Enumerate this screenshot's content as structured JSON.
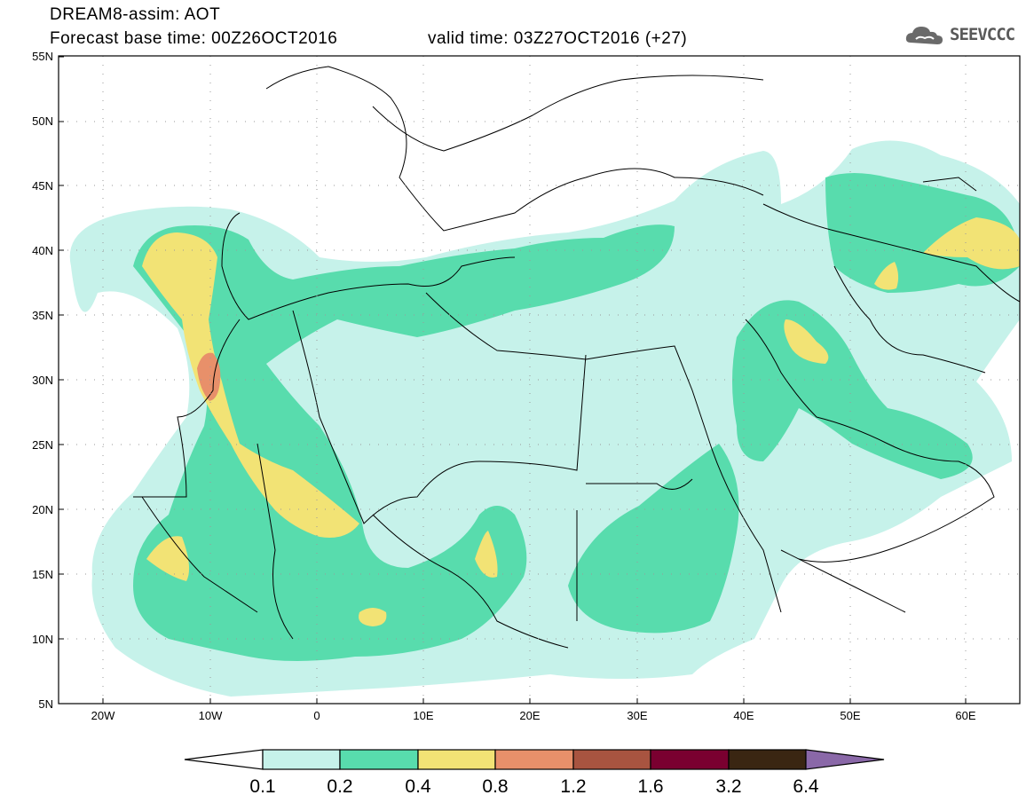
{
  "header": {
    "line1": "DREAM8-assim: AOT",
    "line2": "Forecast base time: 00Z26OCT2016",
    "valid": "valid time: 03Z27OCT2016 (+27)",
    "logo_text": "SEEVCCC",
    "logo_icon": "cloud-logo-icon"
  },
  "map": {
    "lat_labels": [
      "55N",
      "50N",
      "45N",
      "40N",
      "35N",
      "30N",
      "25N",
      "20N",
      "15N",
      "10N",
      "5N"
    ],
    "lon_labels": [
      "20W",
      "10W",
      "0",
      "10E",
      "20E",
      "30E",
      "40E",
      "50E",
      "60E"
    ],
    "lon_range": [
      -25,
      65
    ],
    "lat_range": [
      5,
      55
    ],
    "grid": "dotted"
  },
  "legend": {
    "labels": [
      "0.1",
      "0.2",
      "0.4",
      "0.8",
      "1.2",
      "1.6",
      "3.2",
      "6.4"
    ],
    "colors": [
      "#ffffff",
      "#c6f2ea",
      "#58dcad",
      "#f2e375",
      "#e8906a",
      "#a85440",
      "#7a0030",
      "#3a2612",
      "#8a68a8"
    ]
  },
  "colors": {
    "aot_01_02": "#c6f2ea",
    "aot_02_04": "#58dcad",
    "aot_04_08": "#f2e375",
    "aot_08_12": "#e8906a"
  }
}
